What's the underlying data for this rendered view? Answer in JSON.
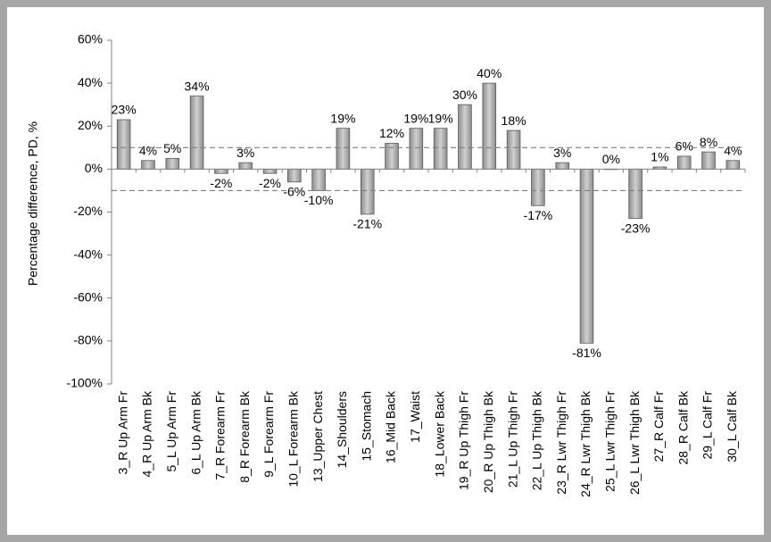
{
  "chart_data": {
    "type": "bar",
    "y_label": "Percentage difference, PD, %",
    "categories": [
      "3_R Up Arm Fr",
      "4_R Up Arm Bk",
      "5_L Up Arm Fr",
      "6_L Up Arm Bk",
      "7_R Forearm Fr",
      "8_R Forearm Bk",
      "9_L Forearm Fr",
      "10_L Forearm Bk",
      "13_Upper Chest",
      "14_Shoulders",
      "15_Stomach",
      "16_Mid Back",
      "17_Waist",
      "18_Lower Back",
      "19_R Up Thigh Fr",
      "20_R Up Thigh Bk",
      "21_L Up Thigh Fr",
      "22_L Up Thigh Bk",
      "23_R Lwr Thigh Fr",
      "24_R Lwr Thigh Bk",
      "25_L Lwr Thigh Fr",
      "26_L Lwr Thigh Bk",
      "27_R Calf Fr",
      "28_R Calf Bk",
      "29_L Calf Fr",
      "30_L Calf Bk"
    ],
    "values": [
      23,
      4,
      5,
      34,
      -2,
      3,
      -2,
      -6,
      -10,
      19,
      -21,
      12,
      19,
      19,
      30,
      40,
      18,
      -17,
      3,
      -81,
      0,
      -23,
      1,
      6,
      8,
      4
    ],
    "value_labels": [
      "23%",
      "4%",
      "5%",
      "34%",
      "-2%",
      "3%",
      "-2%",
      "-6%",
      "-10%",
      "19%",
      "-21%",
      "12%",
      "19%",
      "19%",
      "30%",
      "40%",
      "18%",
      "-17%",
      "3%",
      "-81%",
      "0%",
      "-23%",
      "1%",
      "6%",
      "8%",
      "4%"
    ],
    "color": "#b3b3b3",
    "ylim": [
      -100,
      60
    ],
    "yticks": [
      {
        "value": -100,
        "label": "-100%"
      },
      {
        "value": -80,
        "label": "-80%"
      },
      {
        "value": -60,
        "label": "-60%"
      },
      {
        "value": -40,
        "label": "-40%"
      },
      {
        "value": -20,
        "label": "-20%"
      },
      {
        "value": 0,
        "label": "0%"
      },
      {
        "value": 20,
        "label": "20%"
      },
      {
        "value": 40,
        "label": "40%"
      },
      {
        "value": 60,
        "label": "60%"
      }
    ],
    "reference_lines": [
      10,
      -10
    ],
    "grid": false
  }
}
